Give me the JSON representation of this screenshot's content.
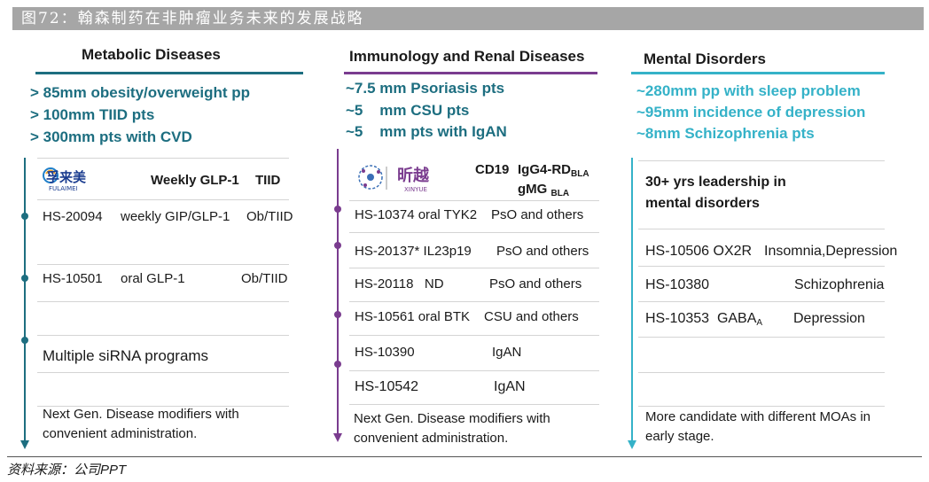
{
  "banner": {
    "text": "图72：翰森制药在非肿瘤业务未来的发展战略"
  },
  "colors": {
    "teal_dark": "#1d6e80",
    "purple": "#7a3c8f",
    "teal_light": "#35b2c8",
    "banner_gray": "#a6a6a6"
  },
  "metabolic": {
    "title": "Metabolic Diseases",
    "summary": [
      "> 85mm obesity/overweight pp",
      "> 100mm TIID pts",
      "> 300mm pts with CVD"
    ],
    "logo": {
      "name": "孚来美",
      "sub": "FULAIMEI"
    },
    "header": {
      "drug": "Weekly GLP-1",
      "indication": "TIID"
    },
    "rows": [
      {
        "code": "HS-20094",
        "desc": "weekly GIP/GLP-1",
        "indication": "Ob/TIID"
      },
      {
        "code": "HS-10501",
        "desc": "oral GLP-1",
        "indication": "Ob/TIID"
      }
    ],
    "sirna": "Multiple siRNA programs",
    "note": "Next Gen. Disease modifiers with convenient administration."
  },
  "immunology": {
    "title": "Immunology and Renal Diseases",
    "summary": [
      "~7.5 mm Psoriasis pts",
      "~5    mm CSU pts",
      "~5    mm pts with IgAN"
    ],
    "logo": {
      "name": "昕越",
      "sub": "XINYUE"
    },
    "header": {
      "cd19": "CD19",
      "line1": "IgG4-RD",
      "line1_sub": "BLA",
      "line2": "gMG",
      "line2_sub": "BLA"
    },
    "rows": [
      {
        "code": "HS-10374 oral TYK2",
        "indication": "PsO and others"
      },
      {
        "code": "HS-20137* IL23p19",
        "indication": "PsO and others"
      },
      {
        "code": "HS-20118   ND",
        "indication": "PsO and others"
      },
      {
        "code": "HS-10561 oral BTK",
        "indication": "CSU and others"
      },
      {
        "code": "HS-10390",
        "indication": "IgAN"
      },
      {
        "code": "HS-10542",
        "indication": "IgAN"
      }
    ],
    "note": "Next Gen. Disease modifiers with convenient administration."
  },
  "mental": {
    "title": "Mental Disorders",
    "summary": [
      "~280mm pp with sleep problem",
      "~95mm incidence of depression",
      "~8mm Schizophrenia pts"
    ],
    "header": {
      "line1": "30+ yrs leadership in",
      "line2": "mental disorders"
    },
    "rows": [
      {
        "code": "HS-10506 OX2R",
        "indication": "Insomnia,Depression"
      },
      {
        "code": "HS-10380",
        "indication": "Schizophrenia"
      },
      {
        "code": "HS-10353  GABA",
        "code_sub": "A",
        "indication": "Depression"
      }
    ],
    "note": "More candidate with different MOAs in early stage."
  },
  "source": "资料来源：公司PPT"
}
